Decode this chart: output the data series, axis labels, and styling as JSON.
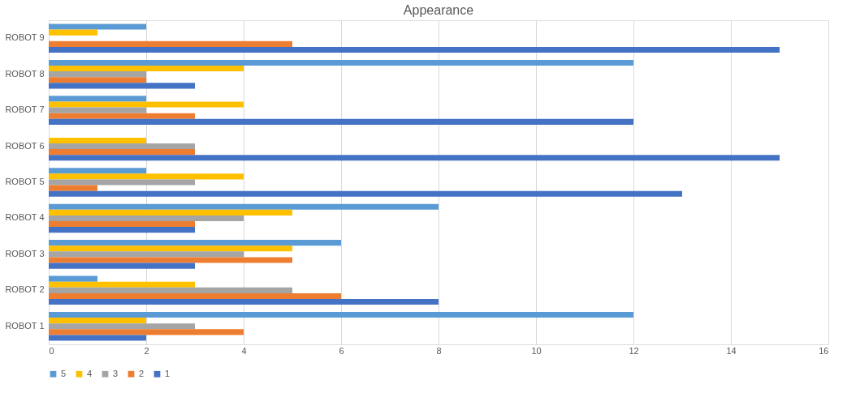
{
  "chart_data": {
    "type": "bar",
    "orientation": "horizontal",
    "title": "Appearance",
    "categories": [
      "ROBOT 9",
      "ROBOT 8",
      "ROBOT 7",
      "ROBOT 6",
      "ROBOT 5",
      "ROBOT 4",
      "ROBOT 3",
      "ROBOT 2",
      "ROBOT 1"
    ],
    "series": [
      {
        "name": "5",
        "color": "#5b9bd5",
        "values": [
          2,
          12,
          2,
          0,
          2,
          8,
          6,
          1,
          12
        ]
      },
      {
        "name": "4",
        "color": "#ffc000",
        "values": [
          1,
          4,
          4,
          2,
          4,
          5,
          5,
          3,
          2
        ]
      },
      {
        "name": "3",
        "color": "#a5a5a5",
        "values": [
          0,
          2,
          2,
          3,
          3,
          4,
          4,
          5,
          3
        ]
      },
      {
        "name": "2",
        "color": "#ed7d31",
        "values": [
          5,
          2,
          3,
          3,
          1,
          3,
          5,
          6,
          4
        ]
      },
      {
        "name": "1",
        "color": "#4472c4",
        "values": [
          15,
          3,
          12,
          15,
          13,
          3,
          3,
          8,
          2
        ]
      }
    ],
    "xlim": [
      0,
      16
    ],
    "xticks": [
      0,
      2,
      4,
      6,
      8,
      10,
      12,
      14,
      16
    ],
    "grid": "x",
    "legend": "bottom"
  }
}
